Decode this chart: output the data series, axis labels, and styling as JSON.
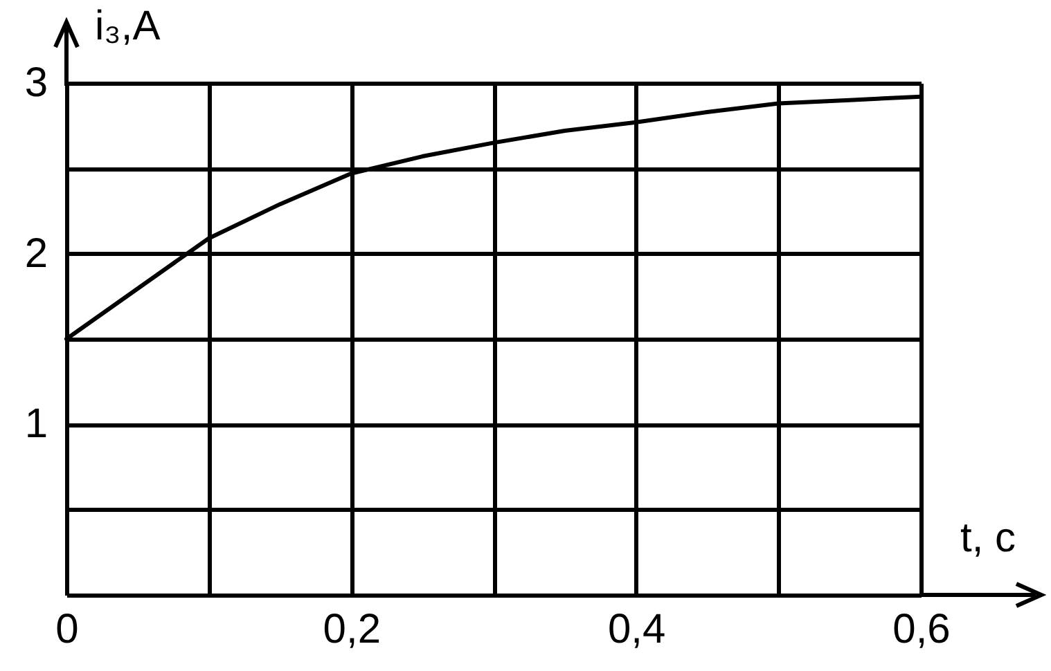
{
  "chart_data": {
    "type": "line",
    "xlabel": "t, с",
    "ylabel": "i₃,A",
    "x": [
      0,
      0.1,
      0.15,
      0.2,
      0.25,
      0.3,
      0.35,
      0.4,
      0.45,
      0.5,
      0.55,
      0.6
    ],
    "series": [
      {
        "color": "#000000",
        "values": [
          1.5,
          2.09,
          2.29,
          2.47,
          2.57,
          2.65,
          2.72,
          2.77,
          2.83,
          2.88,
          2.9,
          2.92
        ]
      }
    ],
    "xlim": [
      0,
      0.6
    ],
    "xticks": [
      0,
      {
        "value": 0.1,
        "label": null
      },
      {
        "value": 0.2,
        "label": "0,2"
      },
      {
        "value": 0.3,
        "label": null
      },
      {
        "value": 0.4,
        "label": "0,4"
      },
      {
        "value": 0.5,
        "label": null
      },
      {
        "value": 0.6,
        "label": "0,6"
      }
    ],
    "ylim": [
      0,
      3
    ],
    "yticks": [
      {
        "value": 0,
        "label": null
      },
      {
        "value": 0.5,
        "label": null
      },
      1,
      {
        "value": 1.5,
        "label": null
      },
      2,
      {
        "value": 2.5,
        "label": null
      },
      3
    ],
    "grid": true,
    "marker": "none",
    "line_style": "solid",
    "legend": false
  }
}
